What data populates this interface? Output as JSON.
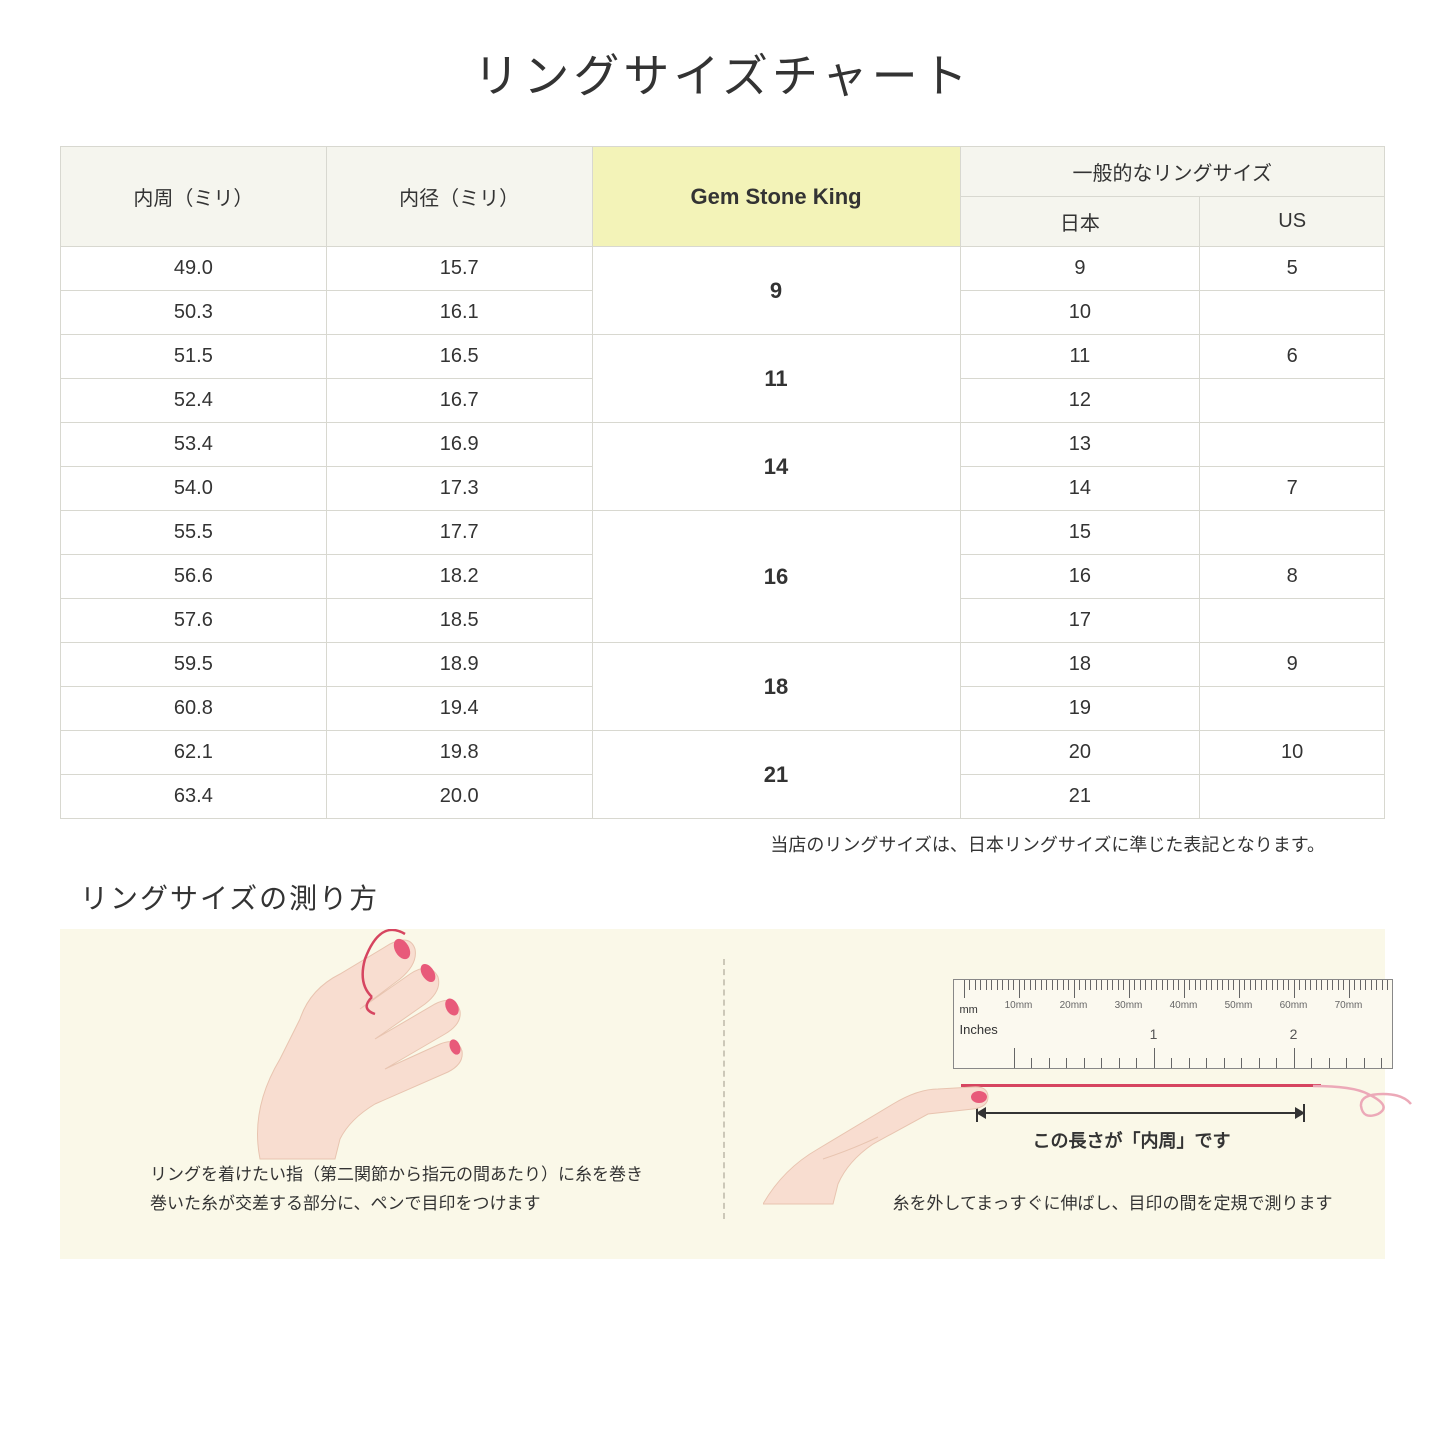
{
  "title": "リングサイズチャート",
  "table": {
    "headers": {
      "circumference": "内周（ミリ）",
      "diameter": "内径（ミリ）",
      "gsk": "Gem Stone King",
      "general": "一般的なリングサイズ",
      "japan": "日本",
      "us": "US"
    },
    "groups": [
      {
        "gsk": "9",
        "rows": [
          {
            "c": "49.0",
            "d": "15.7",
            "jp": "9",
            "us": "5"
          },
          {
            "c": "50.3",
            "d": "16.1",
            "jp": "10",
            "us": ""
          }
        ]
      },
      {
        "gsk": "11",
        "rows": [
          {
            "c": "51.5",
            "d": "16.5",
            "jp": "11",
            "us": "6"
          },
          {
            "c": "52.4",
            "d": "16.7",
            "jp": "12",
            "us": ""
          }
        ]
      },
      {
        "gsk": "14",
        "rows": [
          {
            "c": "53.4",
            "d": "16.9",
            "jp": "13",
            "us": ""
          },
          {
            "c": "54.0",
            "d": "17.3",
            "jp": "14",
            "us": "7"
          }
        ]
      },
      {
        "gsk": "16",
        "rows": [
          {
            "c": "55.5",
            "d": "17.7",
            "jp": "15",
            "us": ""
          },
          {
            "c": "56.6",
            "d": "18.2",
            "jp": "16",
            "us": "8"
          },
          {
            "c": "57.6",
            "d": "18.5",
            "jp": "17",
            "us": ""
          }
        ]
      },
      {
        "gsk": "18",
        "rows": [
          {
            "c": "59.5",
            "d": "18.9",
            "jp": "18",
            "us": "9"
          },
          {
            "c": "60.8",
            "d": "19.4",
            "jp": "19",
            "us": ""
          }
        ]
      },
      {
        "gsk": "21",
        "rows": [
          {
            "c": "62.1",
            "d": "19.8",
            "jp": "20",
            "us": "10"
          },
          {
            "c": "63.4",
            "d": "20.0",
            "jp": "21",
            "us": ""
          }
        ]
      }
    ]
  },
  "note": "当店のリングサイズは、日本リングサイズに準じた表記となります。",
  "subtitle": "リングサイズの測り方",
  "instruction_left": "リングを着けたい指（第二関節から指元の間あたり）に糸を巻き\n巻いた糸が交差する部分に、ペンで目印をつけます",
  "instruction_right": "糸を外してまっすぐに伸ばし、目印の間を定規で測ります",
  "arrow_label": "この長さが「内周」です",
  "ruler": {
    "mm_label": "mm",
    "inches_label": "Inches",
    "mm_ticks": [
      "10mm",
      "20mm",
      "30mm",
      "40mm",
      "50mm",
      "60mm",
      "70mm"
    ],
    "inch_ticks": [
      "1",
      "2"
    ]
  },
  "colors": {
    "header_bg": "#f5f5ee",
    "gsk_bg": "#f3f3b8",
    "border": "#d8d8d0",
    "instruction_bg": "#faf8e8",
    "skin": "#f8ddd0",
    "skin_dark": "#f0c8b8",
    "nail": "#e85a7a",
    "string": "#d64560"
  }
}
